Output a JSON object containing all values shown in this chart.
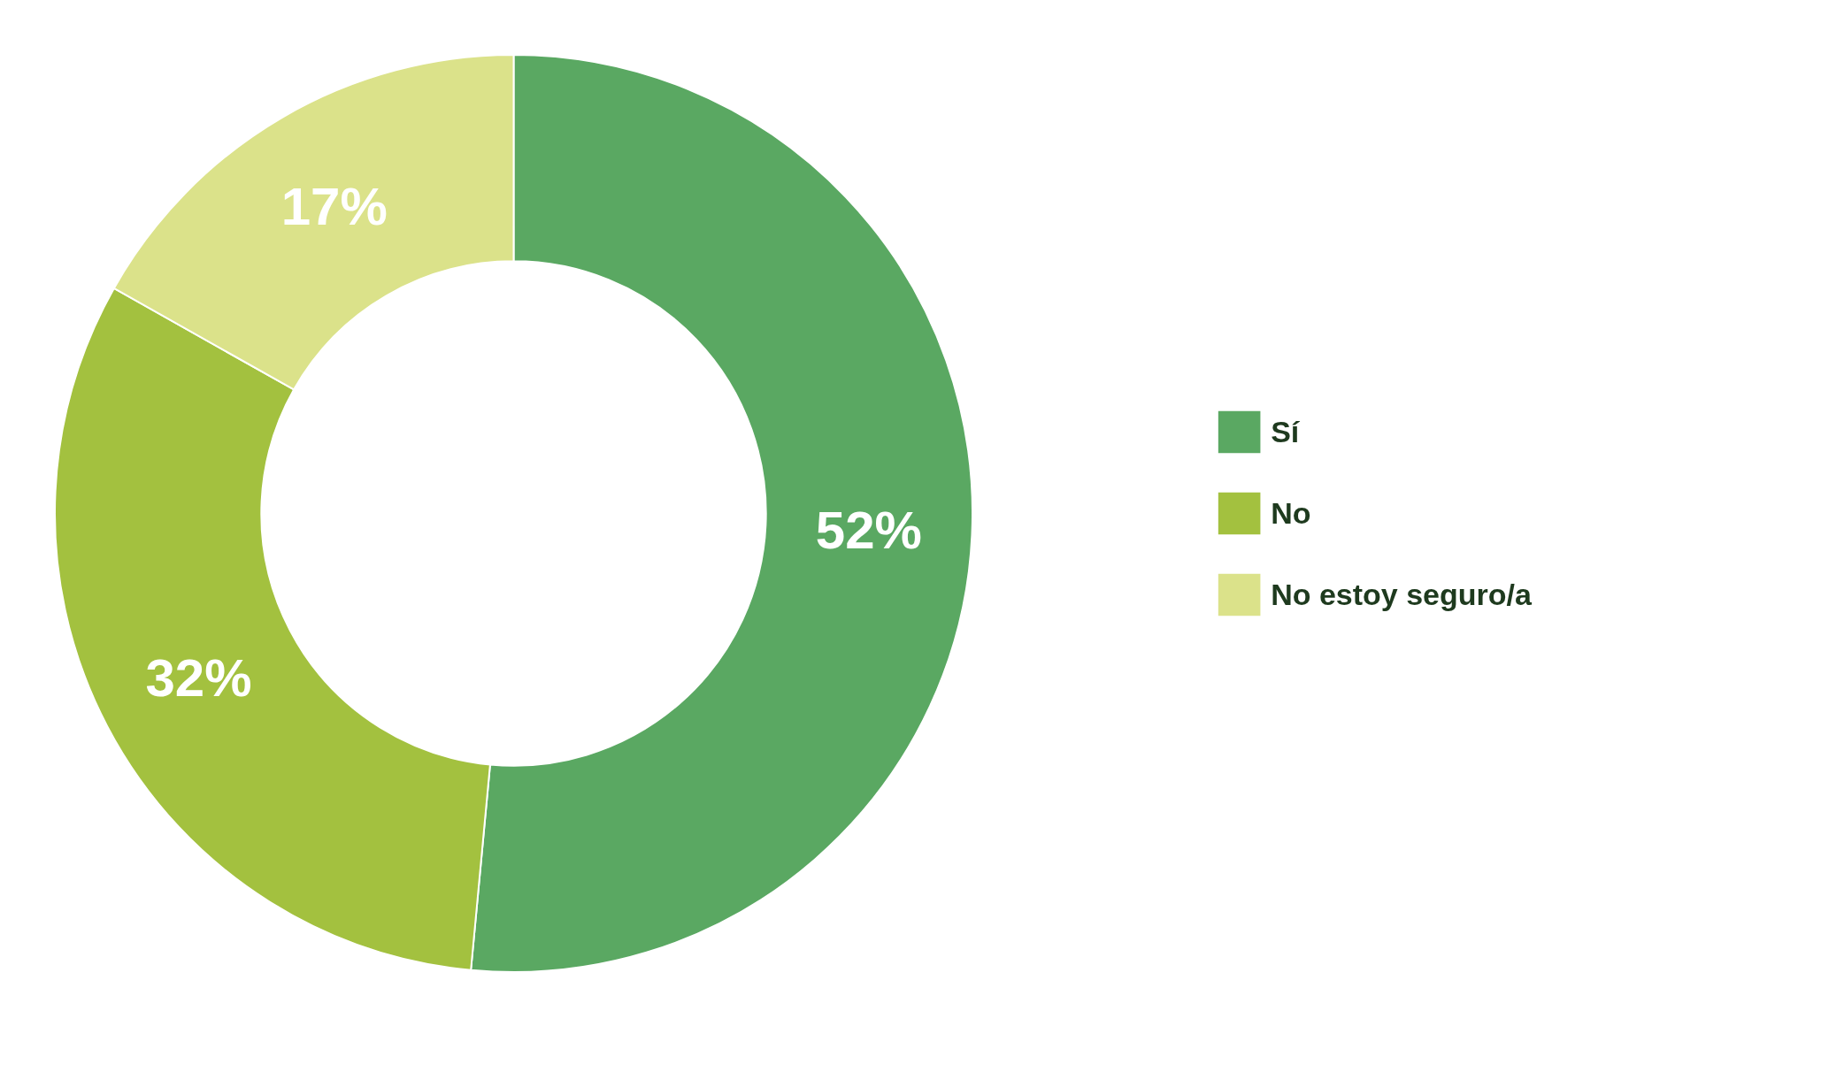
{
  "chart_data": {
    "type": "donut",
    "categories": [
      "Sí",
      "No",
      "No estoy seguro/a"
    ],
    "values": [
      52,
      32,
      17
    ],
    "colors": [
      "#5aa862",
      "#a3c13f",
      "#dbe28a"
    ],
    "value_labels": [
      "52%",
      "32%",
      "17%"
    ],
    "legend": "right"
  }
}
